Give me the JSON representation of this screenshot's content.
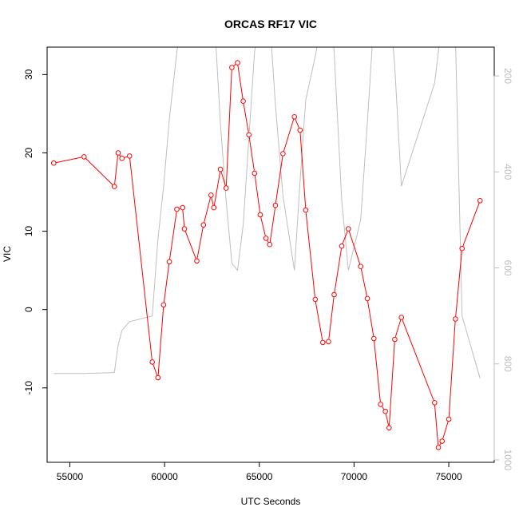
{
  "chart_data": {
    "type": "line",
    "title": "ORCAS RF17 VIC",
    "xlabel": "UTC Seconds",
    "ylabel": "VIC",
    "xlim": [
      53800,
      77400
    ],
    "ylim": [
      -19.5,
      33.5
    ],
    "xticks": [
      55000,
      60000,
      65000,
      70000,
      75000
    ],
    "xtick_labels": [
      "55000",
      "60000",
      "65000",
      "70000",
      "75000"
    ],
    "yticks": [
      -10,
      0,
      10,
      20,
      30
    ],
    "ytick_labels": [
      "-10",
      "0",
      "10",
      "20",
      "30"
    ],
    "y2lim": [
      1005,
      140
    ],
    "y2ticks": [
      200,
      400,
      600,
      800,
      1000
    ],
    "y2tick_labels": [
      "200",
      "400",
      "600",
      "800",
      "1000"
    ],
    "grid": false,
    "colors": {
      "primary": "#ff0000",
      "secondary": "#bebebe",
      "axis": "#000000"
    },
    "series": [
      {
        "marker": "open-circle",
        "color": "#ff0000",
        "axis": "left",
        "x": [
          54150,
          55750,
          57350,
          57550,
          57750,
          58150,
          59350,
          59650,
          59950,
          60250,
          60650,
          60950,
          61050,
          61700,
          62050,
          62450,
          62600,
          62950,
          63250,
          63550,
          63850,
          64150,
          64450,
          64750,
          65050,
          65350,
          65550,
          65850,
          66250,
          66850,
          67150,
          67450,
          67950,
          68350,
          68650,
          68950,
          69350,
          69700,
          70350,
          70700,
          71050,
          71400,
          71650,
          71850,
          72150,
          72500,
          74250,
          74450,
          74650,
          75000,
          75350,
          75700,
          76650
        ],
        "y": [
          18.7,
          19.5,
          15.7,
          20.0,
          19.3,
          19.6,
          -6.7,
          -8.7,
          0.6,
          6.1,
          12.8,
          13.0,
          10.3,
          6.2,
          10.8,
          14.6,
          13.0,
          17.9,
          15.5,
          30.9,
          31.5,
          26.6,
          22.3,
          17.4,
          12.1,
          9.1,
          8.3,
          13.3,
          19.9,
          24.6,
          22.9,
          12.7,
          1.3,
          -4.2,
          -4.1,
          1.9,
          8.1,
          10.3,
          5.5,
          1.4,
          -3.7,
          -12.1,
          -13.0,
          -15.1,
          -3.8,
          -1.0,
          -11.9,
          -17.6,
          -16.8,
          -14.0,
          -1.2,
          7.8,
          13.9
        ]
      },
      {
        "color": "#bebebe",
        "axis": "right",
        "x": [
          54150,
          55750,
          57350,
          57550,
          57750,
          58150,
          59350,
          59650,
          59950,
          60250,
          60650,
          60950,
          61050,
          61700,
          62050,
          62450,
          62600,
          62950,
          63250,
          63550,
          63850,
          64150,
          64450,
          64750,
          65050,
          65350,
          65550,
          65850,
          66250,
          66850,
          67150,
          67450,
          67950,
          68350,
          68650,
          68950,
          69350,
          69700,
          70350,
          70700,
          71050,
          71400,
          71650,
          71850,
          72150,
          72500,
          74250,
          74450,
          74650,
          75000,
          75350,
          75700,
          76650
        ],
        "y": [
          820,
          820,
          818,
          760,
          730,
          712,
          700,
          540,
          430,
          290,
          150,
          75,
          90,
          130,
          120,
          40,
          60,
          300,
          460,
          590,
          605,
          510,
          330,
          150,
          70,
          55,
          80,
          260,
          450,
          605,
          420,
          250,
          160,
          70,
          40,
          150,
          460,
          605,
          500,
          300,
          80,
          40,
          40,
          40,
          180,
          430,
          215,
          150,
          75,
          40,
          120,
          700,
          830
        ]
      }
    ]
  }
}
